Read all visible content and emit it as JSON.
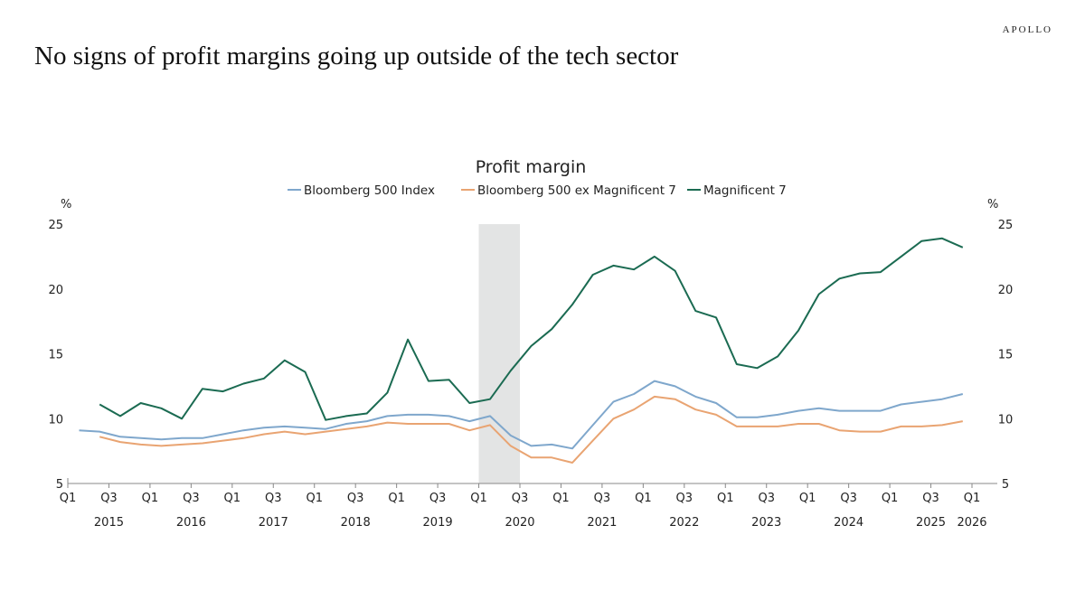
{
  "brand": "APOLLO",
  "title": "No signs of profit margins going up outside of the tech sector",
  "chart_data": {
    "type": "line",
    "title": "Profit margin",
    "ylabel_left": "%",
    "ylabel_right": "%",
    "ylim": [
      5,
      25
    ],
    "yticks": [
      5,
      10,
      15,
      20,
      25
    ],
    "xlim": [
      "2015 Q1",
      "2026 Q1"
    ],
    "x_tick_labels": [
      "Q1",
      "Q3",
      "Q1",
      "Q3",
      "Q1",
      "Q3",
      "Q1",
      "Q3",
      "Q1",
      "Q3",
      "Q1",
      "Q3",
      "Q1",
      "Q3",
      "Q1",
      "Q3",
      "Q1",
      "Q3",
      "Q1",
      "Q3",
      "Q1",
      "Q3",
      "Q1"
    ],
    "year_labels": [
      "2015",
      "2016",
      "2017",
      "2018",
      "2019",
      "2020",
      "2021",
      "2022",
      "2023",
      "2024",
      "2025",
      "2026"
    ],
    "legend_placement": "top-center",
    "grid": false,
    "shaded_region": {
      "from": "2020 Q1",
      "to": "2020 Q3",
      "color": "#e3e4e4"
    },
    "x_start": "2015 Q1",
    "frequency": "quarterly",
    "series": [
      {
        "name": "Bloomberg 500 Index",
        "color": "#7fa7cc",
        "values": [
          9.1,
          9.0,
          8.6,
          8.5,
          8.4,
          8.5,
          8.5,
          8.8,
          9.1,
          9.3,
          9.4,
          9.3,
          9.2,
          9.6,
          9.8,
          10.2,
          10.3,
          10.3,
          10.2,
          9.8,
          10.2,
          8.7,
          7.9,
          8.0,
          7.7,
          9.5,
          11.3,
          11.9,
          12.9,
          12.5,
          11.7,
          11.2,
          10.1,
          10.1,
          10.3,
          10.6,
          10.8,
          10.6,
          10.6,
          10.6,
          11.1,
          11.3,
          11.5,
          11.9
        ]
      },
      {
        "name": "Bloomberg 500 ex Magnificent 7",
        "color": "#e9a472",
        "values": [
          null,
          8.6,
          8.2,
          8.0,
          7.9,
          8.0,
          8.1,
          8.3,
          8.5,
          8.8,
          9.0,
          8.8,
          9.0,
          9.2,
          9.4,
          9.7,
          9.6,
          9.6,
          9.6,
          9.1,
          9.5,
          7.9,
          7.0,
          7.0,
          6.6,
          8.3,
          10.0,
          10.7,
          11.7,
          11.5,
          10.7,
          10.3,
          9.4,
          9.4,
          9.4,
          9.6,
          9.6,
          9.1,
          9.0,
          9.0,
          9.4,
          9.4,
          9.5,
          9.8
        ]
      },
      {
        "name": "Magnificent 7",
        "color": "#1b6b52",
        "values": [
          null,
          11.1,
          10.2,
          11.2,
          10.8,
          10.0,
          12.3,
          12.1,
          12.7,
          13.1,
          14.5,
          13.6,
          9.9,
          10.2,
          10.4,
          12.0,
          16.1,
          12.9,
          13.0,
          11.2,
          11.5,
          13.7,
          15.6,
          16.9,
          18.8,
          21.1,
          21.8,
          21.5,
          22.5,
          21.4,
          18.3,
          17.8,
          14.2,
          13.9,
          14.8,
          16.8,
          19.6,
          20.8,
          21.2,
          21.3,
          22.5,
          23.7,
          23.9,
          23.2
        ]
      }
    ]
  }
}
